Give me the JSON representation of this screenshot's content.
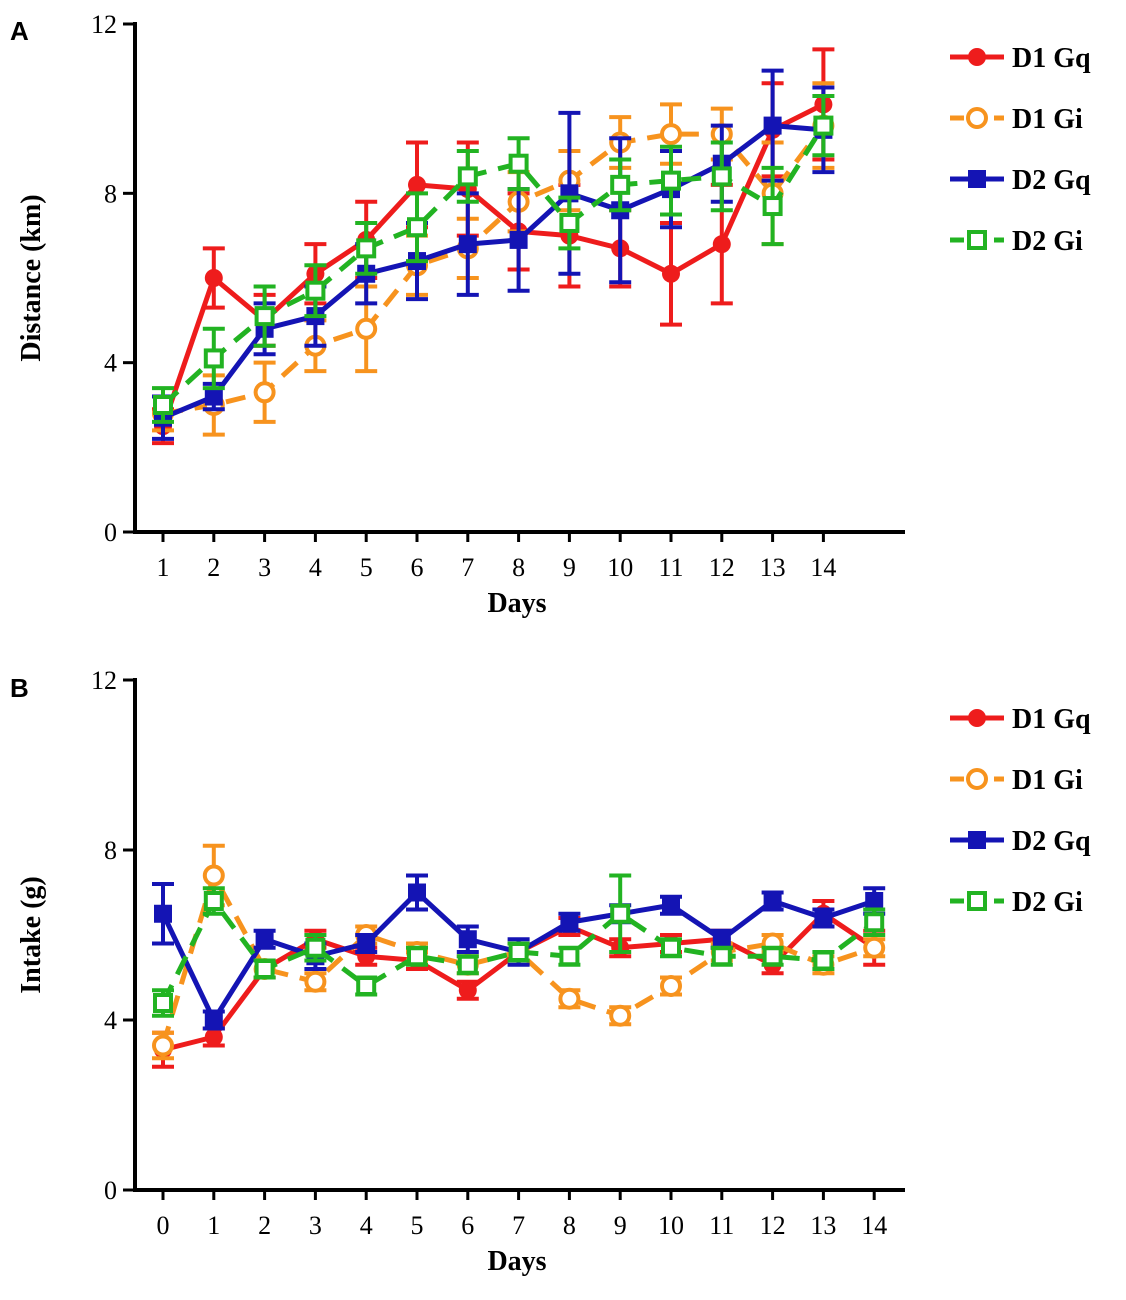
{
  "chart_data": [
    {
      "panel": "A",
      "type": "line",
      "xlabel": "Days",
      "ylabel": "Distance (km)",
      "ylim": [
        0,
        12
      ],
      "yticks": [
        "0",
        "4",
        "8",
        "12"
      ],
      "x": [
        1,
        2,
        3,
        4,
        5,
        6,
        7,
        8,
        9,
        10,
        11,
        12,
        13,
        14
      ],
      "legend": "right",
      "series": [
        {
          "name": "D1 Gq",
          "color": "#ee1c1c",
          "dash": false,
          "marker": "circle-filled",
          "values": [
            2.5,
            6.0,
            5.0,
            6.1,
            6.9,
            8.2,
            8.1,
            7.1,
            7.0,
            6.7,
            6.1,
            6.8,
            9.5,
            10.1
          ],
          "errors": [
            0.4,
            0.7,
            0.6,
            0.7,
            0.9,
            1.0,
            1.1,
            0.9,
            1.2,
            0.9,
            1.2,
            1.4,
            1.1,
            1.3
          ]
        },
        {
          "name": "D1 Gi",
          "color": "#f7931e",
          "dash": true,
          "marker": "circle-open",
          "values": [
            2.8,
            3.0,
            3.3,
            4.4,
            4.8,
            6.3,
            6.7,
            7.8,
            8.3,
            9.2,
            9.4,
            9.4,
            8.0,
            9.6
          ],
          "errors": [
            0.4,
            0.7,
            0.7,
            0.6,
            1.0,
            0.7,
            0.7,
            0.7,
            0.7,
            0.6,
            0.7,
            0.6,
            1.2,
            1.0
          ]
        },
        {
          "name": "D2 Gq",
          "color": "#1414b4",
          "dash": false,
          "marker": "square-filled",
          "values": [
            2.7,
            3.2,
            4.8,
            5.1,
            6.1,
            6.4,
            6.8,
            6.9,
            8.0,
            7.6,
            8.1,
            8.7,
            9.6,
            9.5
          ],
          "errors": [
            0.5,
            0.3,
            0.6,
            0.7,
            0.7,
            0.9,
            1.2,
            1.2,
            1.9,
            1.7,
            0.9,
            0.9,
            1.3,
            1.0
          ]
        },
        {
          "name": "D2 Gi",
          "color": "#22b322",
          "dash": true,
          "marker": "square-open",
          "values": [
            3.0,
            4.1,
            5.1,
            5.7,
            6.7,
            7.2,
            8.4,
            8.7,
            7.3,
            8.2,
            8.3,
            8.4,
            7.7,
            9.6
          ],
          "errors": [
            0.4,
            0.7,
            0.7,
            0.6,
            0.6,
            0.8,
            0.6,
            0.6,
            0.6,
            0.6,
            0.8,
            0.8,
            0.9,
            0.7
          ]
        }
      ]
    },
    {
      "panel": "B",
      "type": "line",
      "xlabel": "Days",
      "ylabel": "Intake (g)",
      "ylim": [
        0,
        12
      ],
      "yticks": [
        "0",
        "4",
        "8",
        "12"
      ],
      "x": [
        0,
        1,
        2,
        3,
        4,
        5,
        6,
        7,
        8,
        9,
        10,
        11,
        12,
        13,
        14
      ],
      "legend": "right",
      "series": [
        {
          "name": "D1 Gq",
          "color": "#ee1c1c",
          "dash": false,
          "marker": "circle-filled",
          "values": [
            3.3,
            3.6,
            5.2,
            5.9,
            5.5,
            5.4,
            4.7,
            5.6,
            6.2,
            5.7,
            5.8,
            5.9,
            5.3,
            6.5,
            5.7
          ],
          "errors": [
            0.4,
            0.2,
            0.2,
            0.2,
            0.2,
            0.2,
            0.2,
            0.2,
            0.2,
            0.2,
            0.2,
            0.2,
            0.2,
            0.3,
            0.4
          ]
        },
        {
          "name": "D1 Gi",
          "color": "#f7931e",
          "dash": true,
          "marker": "circle-open",
          "values": [
            3.4,
            7.4,
            5.2,
            4.9,
            6.0,
            5.6,
            5.3,
            5.6,
            4.5,
            4.1,
            4.8,
            5.6,
            5.8,
            5.3,
            5.7
          ],
          "errors": [
            0.3,
            0.7,
            0.2,
            0.2,
            0.2,
            0.2,
            0.2,
            0.2,
            0.2,
            0.2,
            0.2,
            0.2,
            0.2,
            0.2,
            0.2
          ]
        },
        {
          "name": "D2 Gq",
          "color": "#1414b4",
          "dash": false,
          "marker": "square-filled",
          "values": [
            6.5,
            4.0,
            5.9,
            5.5,
            5.8,
            7.0,
            5.9,
            5.6,
            6.3,
            6.5,
            6.7,
            5.9,
            6.8,
            6.4,
            6.8
          ],
          "errors": [
            0.7,
            0.2,
            0.2,
            0.3,
            0.2,
            0.4,
            0.3,
            0.3,
            0.2,
            0.2,
            0.2,
            0.2,
            0.2,
            0.2,
            0.3
          ]
        },
        {
          "name": "D2 Gi",
          "color": "#22b322",
          "dash": true,
          "marker": "square-open",
          "values": [
            4.4,
            6.8,
            5.2,
            5.7,
            4.8,
            5.5,
            5.3,
            5.6,
            5.5,
            6.5,
            5.7,
            5.5,
            5.5,
            5.4,
            6.3
          ],
          "errors": [
            0.3,
            0.3,
            0.2,
            0.3,
            0.2,
            0.2,
            0.2,
            0.2,
            0.2,
            0.9,
            0.2,
            0.2,
            0.2,
            0.2,
            0.3
          ]
        }
      ]
    }
  ]
}
